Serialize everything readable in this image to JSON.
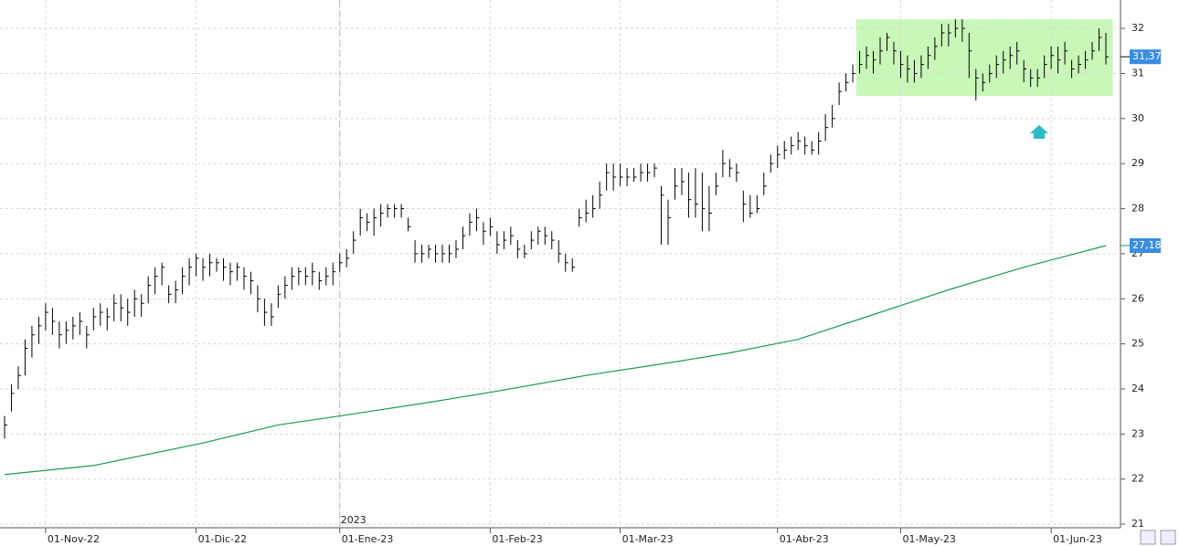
{
  "chart_data": {
    "type": "ohlc",
    "series": [
      {
        "name": "price",
        "color": "#000000",
        "high": [
          23.4,
          24.1,
          24.5,
          25.1,
          25.4,
          25.6,
          25.9,
          25.8,
          25.5,
          25.5,
          25.6,
          25.7,
          25.4,
          25.8,
          25.9,
          25.8,
          26.1,
          26.1,
          26.0,
          26.2,
          26.1,
          26.5,
          26.7,
          26.8,
          26.3,
          26.4,
          26.7,
          26.9,
          27.0,
          26.9,
          27.0,
          26.9,
          26.9,
          26.8,
          26.8,
          26.7,
          26.6,
          26.3,
          26.0,
          25.9,
          26.3,
          26.5,
          26.7,
          26.7,
          26.7,
          26.8,
          26.6,
          26.7,
          26.8,
          27.0,
          27.1,
          27.5,
          28.0,
          27.9,
          28.0,
          28.1,
          28.1,
          28.1,
          28.1,
          27.8,
          27.3,
          27.2,
          27.2,
          27.2,
          27.2,
          27.2,
          27.3,
          27.6,
          27.9,
          28.0,
          27.7,
          27.8,
          27.5,
          27.5,
          27.6,
          27.3,
          27.2,
          27.5,
          27.6,
          27.6,
          27.5,
          27.3,
          27.0,
          26.9,
          28.0,
          28.2,
          28.3,
          28.6,
          29.0,
          29.0,
          29.0,
          28.9,
          28.9,
          29.0,
          29.0,
          29.0,
          28.5,
          28.2,
          28.9,
          28.9,
          28.8,
          28.9,
          28.8,
          28.5,
          28.8,
          29.3,
          29.1,
          29.0,
          28.4,
          28.3,
          28.3,
          28.8,
          29.2,
          29.4,
          29.5,
          29.6,
          29.7,
          29.6,
          29.5,
          29.7,
          30.1,
          30.3,
          30.8,
          31.0,
          31.2,
          31.5,
          31.6,
          31.5,
          31.8,
          31.9,
          31.7,
          31.5,
          31.4,
          31.3,
          31.4,
          31.6,
          31.8,
          32.1,
          32.1,
          32.2,
          32.2,
          31.9,
          31.1,
          31.0,
          31.2,
          31.4,
          31.5,
          31.6,
          31.7,
          31.3,
          31.1,
          31.1,
          31.4,
          31.6,
          31.6,
          31.7,
          31.3,
          31.4,
          31.5,
          31.7,
          32.0,
          31.9
        ],
        "low": [
          22.9,
          23.5,
          24.0,
          24.3,
          24.7,
          25.0,
          25.3,
          25.2,
          24.9,
          25.0,
          25.1,
          25.2,
          24.9,
          25.3,
          25.4,
          25.3,
          25.5,
          25.5,
          25.4,
          25.6,
          25.6,
          25.9,
          26.1,
          26.3,
          25.9,
          25.9,
          26.1,
          26.3,
          26.5,
          26.4,
          26.5,
          26.6,
          26.4,
          26.3,
          26.4,
          26.2,
          26.1,
          25.7,
          25.4,
          25.4,
          25.8,
          26.0,
          26.2,
          26.3,
          26.3,
          26.3,
          26.2,
          26.3,
          26.3,
          26.6,
          26.7,
          27.0,
          27.4,
          27.5,
          27.4,
          27.6,
          27.8,
          27.8,
          27.8,
          27.5,
          26.8,
          26.8,
          26.9,
          26.8,
          26.8,
          26.8,
          26.9,
          27.1,
          27.4,
          27.5,
          27.2,
          27.4,
          27.0,
          27.1,
          27.2,
          26.9,
          26.9,
          27.1,
          27.2,
          27.2,
          27.1,
          26.8,
          26.6,
          26.6,
          27.6,
          27.7,
          27.8,
          28.0,
          28.4,
          28.4,
          28.5,
          28.5,
          28.6,
          28.6,
          28.6,
          28.7,
          27.2,
          27.2,
          28.2,
          28.3,
          27.8,
          27.8,
          27.5,
          27.5,
          28.3,
          28.7,
          28.7,
          28.6,
          27.7,
          27.8,
          27.9,
          28.3,
          28.8,
          28.9,
          29.1,
          29.2,
          29.3,
          29.2,
          29.2,
          29.2,
          29.5,
          29.8,
          30.3,
          30.6,
          30.8,
          31.0,
          31.1,
          31.0,
          31.2,
          31.5,
          31.2,
          30.9,
          30.8,
          30.8,
          30.9,
          31.1,
          31.3,
          31.6,
          31.6,
          31.8,
          31.7,
          30.9,
          30.4,
          30.6,
          30.8,
          30.9,
          31.0,
          31.1,
          31.2,
          30.8,
          30.7,
          30.7,
          30.9,
          31.1,
          31.0,
          31.2,
          30.9,
          31.0,
          31.1,
          31.3,
          31.5,
          31.2
        ],
        "close": [
          23.2,
          23.9,
          24.3,
          24.9,
          25.2,
          25.4,
          25.7,
          25.5,
          25.2,
          25.3,
          25.4,
          25.5,
          25.2,
          25.6,
          25.7,
          25.6,
          25.9,
          25.8,
          25.7,
          26.0,
          25.9,
          26.3,
          26.5,
          26.7,
          26.1,
          26.2,
          26.5,
          26.7,
          26.9,
          26.7,
          26.8,
          26.8,
          26.7,
          26.6,
          26.7,
          26.5,
          26.4,
          26.0,
          25.7,
          25.6,
          26.1,
          26.3,
          26.5,
          26.6,
          26.5,
          26.6,
          26.4,
          26.5,
          26.6,
          26.8,
          26.9,
          27.3,
          27.8,
          27.7,
          27.8,
          27.9,
          28.0,
          28.0,
          28.0,
          27.6,
          27.0,
          27.0,
          27.1,
          27.0,
          27.0,
          27.0,
          27.1,
          27.4,
          27.7,
          27.8,
          27.5,
          27.6,
          27.2,
          27.3,
          27.4,
          27.1,
          27.0,
          27.3,
          27.5,
          27.4,
          27.3,
          27.0,
          26.8,
          26.7,
          27.8,
          27.9,
          28.0,
          28.3,
          28.8,
          28.7,
          28.7,
          28.7,
          28.7,
          28.8,
          28.8,
          28.9,
          28.3,
          27.8,
          28.5,
          28.6,
          28.2,
          28.1,
          28.0,
          27.9,
          28.5,
          29.0,
          28.9,
          28.8,
          28.1,
          27.9,
          28.0,
          28.5,
          29.0,
          29.2,
          29.3,
          29.4,
          29.5,
          29.4,
          29.3,
          29.5,
          29.8,
          30.0,
          30.6,
          30.8,
          31.0,
          31.2,
          31.4,
          31.3,
          31.5,
          31.8,
          31.5,
          31.2,
          31.1,
          31.0,
          31.2,
          31.4,
          31.6,
          31.9,
          31.9,
          32.0,
          32.0,
          31.5,
          30.9,
          30.8,
          31.0,
          31.2,
          31.3,
          31.4,
          31.5,
          31.1,
          30.9,
          30.9,
          31.2,
          31.4,
          31.3,
          31.5,
          31.1,
          31.2,
          31.3,
          31.5,
          31.8,
          31.37
        ],
        "last_label": {
          "value": 31.37,
          "label": "31,37"
        }
      },
      {
        "name": "moving-average",
        "color": "#1a9a50",
        "x": [
          0,
          13,
          29,
          40,
          49,
          62,
          72,
          85,
          98,
          106,
          116,
          126,
          138,
          149,
          161
        ],
        "values": [
          22.1,
          22.3,
          22.8,
          23.2,
          23.4,
          23.7,
          23.95,
          24.3,
          24.6,
          24.8,
          25.1,
          25.6,
          26.2,
          26.7,
          27.18
        ],
        "last_label": {
          "value": 27.18,
          "label": "27,18"
        }
      }
    ],
    "zone": {
      "x": [
        124.5,
        162
      ],
      "ylim": [
        30.5,
        32.2
      ],
      "color": "#c8f7b8"
    },
    "xlim": [
      0,
      161
    ],
    "xticks": [
      {
        "value": 6,
        "label": "01-Nov-22"
      },
      {
        "value": 28,
        "label": "01-Dic-22"
      },
      {
        "value": 49,
        "label": "01-Ene-23"
      },
      {
        "value": 71,
        "label": "01-Feb-23"
      },
      {
        "value": 90,
        "label": "01-Mar-23"
      },
      {
        "value": 113,
        "label": "01-Abr-23"
      },
      {
        "value": 131,
        "label": "01-May-23"
      },
      {
        "value": 153,
        "label": "01-Jun-23"
      }
    ],
    "year_marker": {
      "value": 49,
      "label": "2023"
    },
    "ylim": [
      20.92,
      32.63
    ],
    "yticks": [
      21,
      22,
      23,
      24,
      25,
      26,
      27,
      28,
      29,
      30,
      31,
      32
    ],
    "grid": true
  }
}
